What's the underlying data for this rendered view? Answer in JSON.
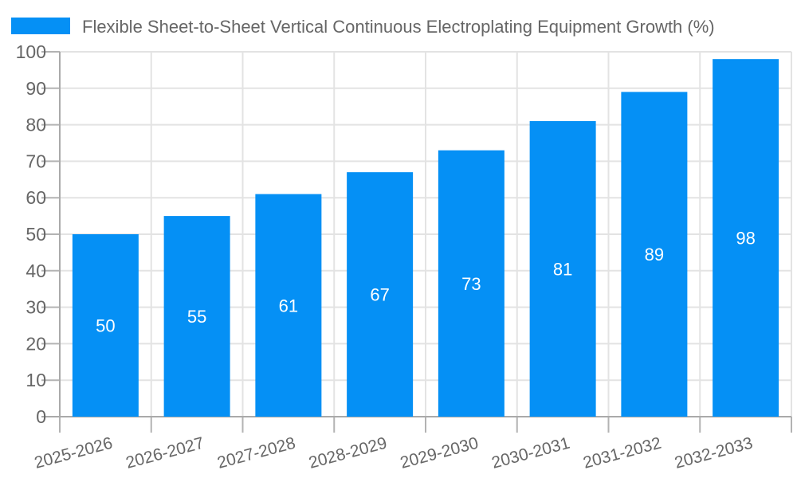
{
  "chart_data": {
    "type": "bar",
    "title": "Flexible Sheet-to-Sheet Vertical Continuous Electroplating Equipment Growth (%)",
    "categories": [
      "2025-2026",
      "2026-2027",
      "2027-2028",
      "2028-2029",
      "2029-2030",
      "2030-2031",
      "2031-2032",
      "2032-2033"
    ],
    "values": [
      50,
      55,
      61,
      67,
      73,
      81,
      89,
      98
    ],
    "xlabel": "",
    "ylabel": "",
    "ylim": [
      0,
      100
    ],
    "ytick_step": 10,
    "yticks": [
      0,
      10,
      20,
      30,
      40,
      50,
      60,
      70,
      80,
      90,
      100
    ],
    "grid": true,
    "legend_position": "top-left",
    "x_label_rotation_deg": -15,
    "colors": {
      "bar": "#0590F5",
      "bar_value_label": "#ffffff",
      "axis_line": "#aaaaaa",
      "tick_mark": "#b3b3b3",
      "grid_line": "#e3e3e3",
      "text": "#666666",
      "background": "#ffffff"
    }
  }
}
